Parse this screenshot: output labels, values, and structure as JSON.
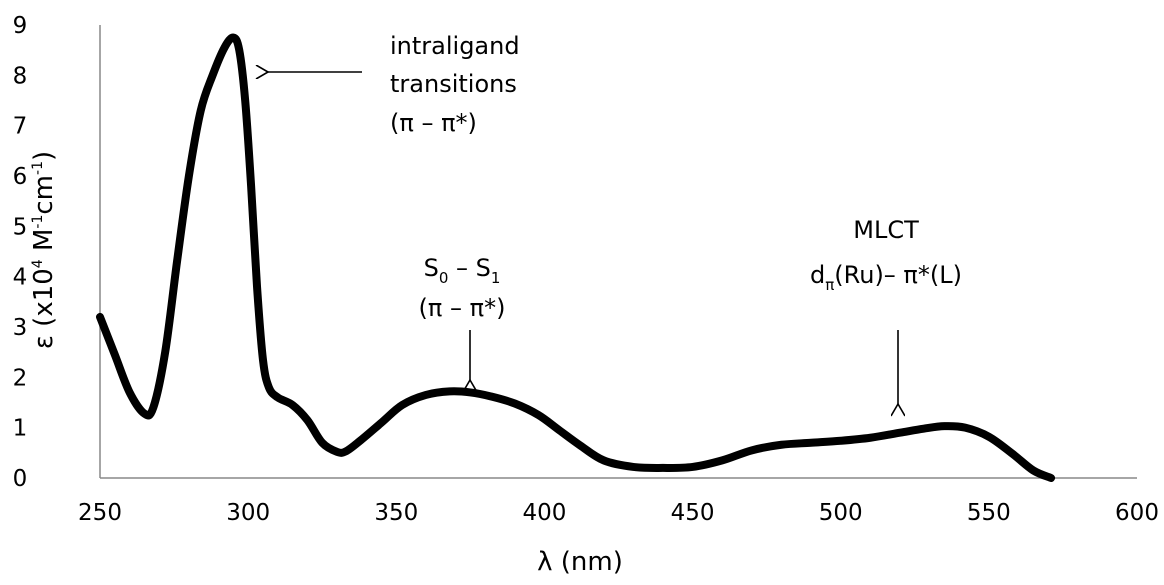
{
  "chart_data": {
    "type": "line",
    "title": "",
    "xlabel": "λ (nm)",
    "ylabel": {
      "base": "ε (x10",
      "exp1": "4",
      "mid1": " M",
      "exp2": "-1",
      "mid2": "cm",
      "exp3": "-1",
      "end": ")"
    },
    "xlim": [
      250,
      600
    ],
    "ylim": [
      0,
      9
    ],
    "xticks": [
      "250",
      "300",
      "350",
      "400",
      "450",
      "500",
      "550",
      "600"
    ],
    "yticks": [
      "0",
      "1",
      "2",
      "3",
      "4",
      "5",
      "6",
      "7",
      "8",
      "9"
    ],
    "grid": false,
    "legend": "none",
    "line_color": "#000000",
    "series": [
      {
        "x": [
          250,
          255,
          260,
          265,
          268,
          272,
          276,
          280,
          284,
          288,
          292,
          295,
          297,
          299,
          301,
          303,
          305,
          307,
          310,
          315,
          320,
          325,
          330,
          333,
          338,
          345,
          352,
          360,
          368,
          375,
          382,
          390,
          398,
          405,
          412,
          420,
          430,
          440,
          450,
          460,
          470,
          480,
          490,
          500,
          510,
          520,
          528,
          535,
          542,
          550,
          558,
          565,
          571
        ],
        "y": [
          3.2,
          2.45,
          1.7,
          1.28,
          1.4,
          2.5,
          4.3,
          6.0,
          7.3,
          8.0,
          8.55,
          8.75,
          8.5,
          7.5,
          5.8,
          3.8,
          2.35,
          1.8,
          1.6,
          1.45,
          1.15,
          0.7,
          0.52,
          0.53,
          0.75,
          1.1,
          1.45,
          1.65,
          1.72,
          1.7,
          1.62,
          1.48,
          1.25,
          0.95,
          0.65,
          0.35,
          0.22,
          0.2,
          0.22,
          0.35,
          0.55,
          0.66,
          0.7,
          0.74,
          0.8,
          0.9,
          0.98,
          1.03,
          1.0,
          0.82,
          0.48,
          0.15,
          0.0
        ]
      }
    ],
    "annotations": [
      {
        "id": "intraligand",
        "lines": [
          "intraligand",
          "transitions",
          "(π – π*)"
        ],
        "arrow_direction": "left",
        "points_to": {
          "x": 296,
          "y": 8.1
        }
      },
      {
        "id": "s0s1",
        "line1": {
          "s": "S",
          "sub0": "0",
          "dash": " – S",
          "sub1": "1"
        },
        "line2": "(π – π*)",
        "arrow_direction": "down",
        "points_to": {
          "x": 374,
          "y": 1.8
        }
      },
      {
        "id": "mlct",
        "line1": "MLCT",
        "line2": {
          "d": "d",
          "sub": "π",
          "rest": "(Ru)– π*(L)"
        },
        "arrow_direction": "down",
        "points_to": {
          "x": 520,
          "y": 1.1
        }
      }
    ]
  }
}
